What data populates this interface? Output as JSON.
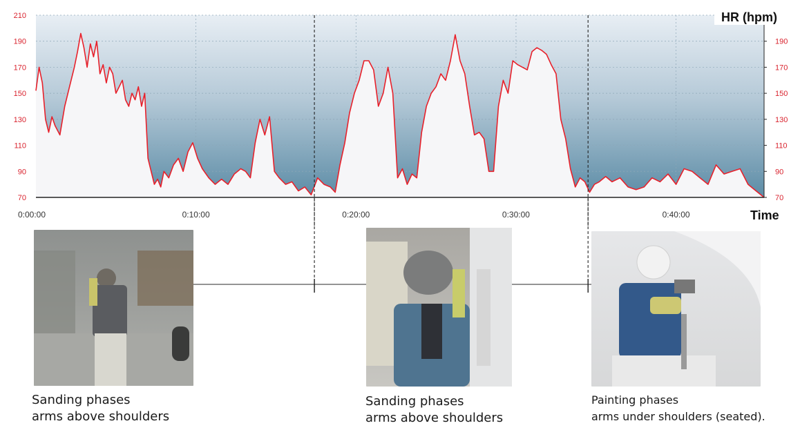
{
  "chart_data": {
    "type": "line",
    "title": "",
    "ylabel": "HR (hpm)",
    "xlabel": "Time",
    "ylim": [
      70,
      210
    ],
    "xlim_minutes": [
      0,
      45.5
    ],
    "y_ticks_left": [
      "70",
      "90",
      "110",
      "130",
      "150",
      "170",
      "190",
      "210"
    ],
    "y_ticks_right": [
      "70",
      "90",
      "110",
      "130",
      "150",
      "170",
      "190"
    ],
    "x_ticks": [
      "0:00:00",
      "0:10:00",
      "0:20:00",
      "0:30:00",
      "0:40:00"
    ],
    "grid": true,
    "series": [
      {
        "color": "#e8202a",
        "x_minutes": [
          0,
          0.2,
          0.4,
          0.6,
          0.8,
          1.0,
          1.2,
          1.5,
          1.8,
          2.1,
          2.4,
          2.6,
          2.8,
          3.0,
          3.2,
          3.4,
          3.6,
          3.8,
          4.0,
          4.2,
          4.4,
          4.6,
          4.8,
          5.0,
          5.2,
          5.4,
          5.6,
          5.8,
          6.0,
          6.2,
          6.4,
          6.6,
          6.8,
          7.0,
          7.2,
          7.4,
          7.6,
          7.8,
          8.0,
          8.3,
          8.6,
          8.9,
          9.2,
          9.5,
          9.8,
          10.1,
          10.4,
          10.8,
          11.2,
          11.6,
          12.0,
          12.4,
          12.8,
          13.1,
          13.4,
          13.7,
          14.0,
          14.3,
          14.6,
          14.9,
          15.2,
          15.6,
          16.0,
          16.4,
          16.8,
          17.2,
          17.6,
          18.0,
          18.4,
          18.7,
          19.0,
          19.3,
          19.6,
          19.9,
          20.2,
          20.5,
          20.8,
          21.1,
          21.4,
          21.7,
          22.0,
          22.3,
          22.6,
          22.9,
          23.2,
          23.5,
          23.8,
          24.1,
          24.4,
          24.7,
          25.0,
          25.3,
          25.6,
          25.9,
          26.2,
          26.5,
          26.8,
          27.1,
          27.4,
          27.7,
          28.0,
          28.3,
          28.6,
          28.9,
          29.2,
          29.5,
          29.8,
          30.1,
          30.4,
          30.7,
          31.0,
          31.3,
          31.6,
          31.9,
          32.2,
          32.5,
          32.8,
          33.1,
          33.4,
          33.7,
          34.0,
          34.3,
          34.6,
          34.9,
          35.2,
          35.6,
          36.0,
          36.5,
          37.0,
          37.5,
          38.0,
          38.5,
          39.0,
          39.5,
          40.0,
          40.5,
          41.0,
          41.5,
          42.0,
          42.5,
          43.0,
          43.5,
          44.0,
          44.5,
          45.0,
          45.5
        ],
        "y": [
          152,
          170,
          158,
          130,
          120,
          132,
          125,
          118,
          140,
          155,
          170,
          182,
          196,
          185,
          170,
          188,
          178,
          190,
          165,
          172,
          158,
          170,
          165,
          150,
          155,
          160,
          145,
          140,
          150,
          145,
          155,
          140,
          150,
          100,
          90,
          80,
          84,
          78,
          90,
          85,
          95,
          100,
          90,
          105,
          112,
          100,
          92,
          85,
          80,
          84,
          80,
          88,
          92,
          90,
          85,
          112,
          130,
          118,
          132,
          90,
          85,
          80,
          82,
          75,
          78,
          72,
          85,
          80,
          78,
          74,
          95,
          112,
          135,
          150,
          160,
          175,
          175,
          168,
          140,
          150,
          170,
          150,
          85,
          92,
          80,
          88,
          85,
          120,
          140,
          150,
          155,
          165,
          160,
          175,
          195,
          175,
          165,
          140,
          118,
          120,
          115,
          90,
          90,
          140,
          160,
          150,
          175,
          172,
          170,
          168,
          182,
          185,
          183,
          180,
          172,
          165,
          130,
          115,
          92,
          78,
          85,
          82,
          74,
          80,
          82,
          86,
          82,
          85,
          78,
          76,
          78,
          85,
          82,
          88,
          80,
          92,
          90,
          85,
          80,
          95,
          88,
          90,
          92,
          80,
          75,
          70
        ]
      }
    ],
    "markers_minutes": [
      17.4,
      34.5
    ]
  },
  "photos": [
    {
      "caption_line1": "Sanding phases",
      "caption_line2": "arms above shoulders",
      "icon": "worker-sanding-photo"
    },
    {
      "caption_line1": "Sanding phases",
      "caption_line2": "arms above shoulders",
      "icon": "worker-sanding-back-photo"
    },
    {
      "caption_line1": "Painting phases",
      "caption_line2": "arms under shoulders (seated).",
      "icon": "worker-painting-photo"
    }
  ],
  "colors": {
    "line": "#e8202a",
    "bg_top": "#e8eef4",
    "bg_bottom": "#5f8ea7",
    "fill_under": "#f7f7f9"
  }
}
